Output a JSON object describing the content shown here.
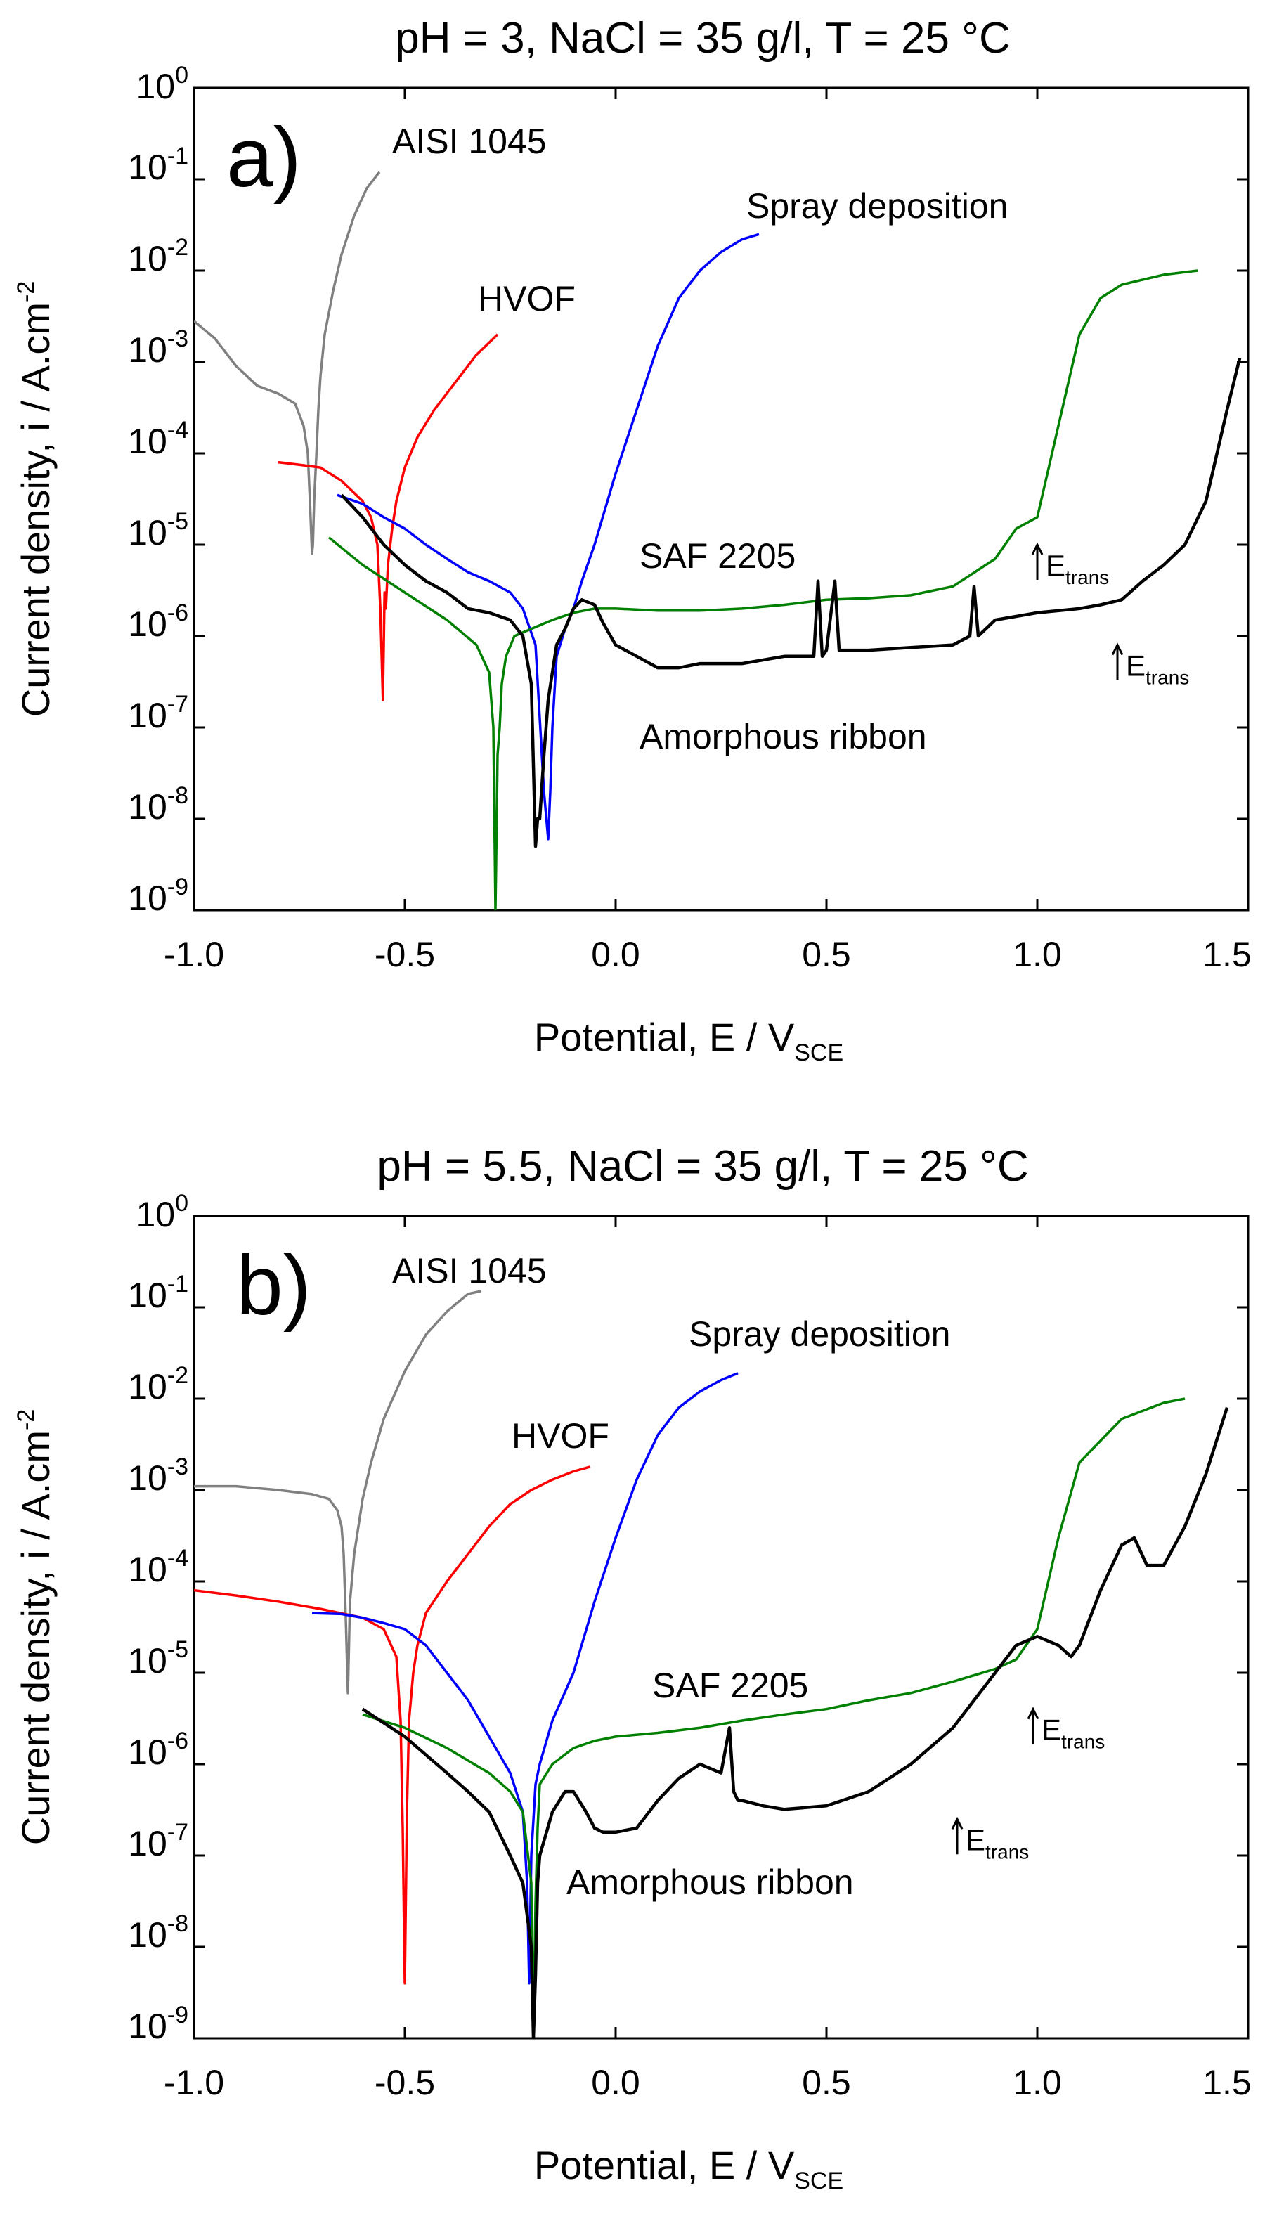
{
  "figure": {
    "panels": [
      {
        "panel_label": "a)",
        "title": "pH = 3, NaCl = 35 g/l, T = 25 °C",
        "annotations": [
          "AISI 1045",
          "HVOF",
          "Spray deposition",
          "SAF 2205",
          "Amorphous ribbon"
        ],
        "markers": [
          {
            "label": "E",
            "sub": "trans",
            "x": 1.0,
            "y": 1e-05
          },
          {
            "label": "E",
            "sub": "trans",
            "x": 1.19,
            "y": 8e-07
          }
        ]
      },
      {
        "panel_label": "b)",
        "title": "pH = 5.5, NaCl = 35 g/l, T = 25 °C",
        "annotations": [
          "AISI 1045",
          "HVOF",
          "Spray deposition",
          "SAF 2205",
          "Amorphous ribbon"
        ],
        "markers": [
          {
            "label": "E",
            "sub": "trans",
            "x": 0.99,
            "y": 4e-06
          },
          {
            "label": "E",
            "sub": "trans",
            "x": 0.81,
            "y": 2.5e-07
          }
        ]
      }
    ],
    "xlabel": {
      "main": "Potential, E / V",
      "sub": "SCE"
    },
    "ylabel": {
      "main": "Current density, i / A.cm",
      "sup": "-2"
    },
    "x_ticks": [
      "-1.0",
      "-0.5",
      "0.0",
      "0.5",
      "1.0",
      "1.5"
    ],
    "y_tick_base": "10",
    "y_tick_exponents": [
      "-9",
      "-8",
      "-7",
      "-6",
      "-5",
      "-4",
      "-3",
      "-2",
      "-1",
      "0"
    ]
  },
  "chart_data": [
    {
      "type": "line",
      "title": "pH = 3, NaCl = 35 g/l, T = 25 °C",
      "xlabel": "Potential, E / VSCE",
      "ylabel": "Current density, i / A.cm-2",
      "xlim": [
        -1.0,
        1.5
      ],
      "ylim": [
        1e-09,
        1
      ],
      "yscale": "log",
      "series": [
        {
          "name": "AISI 1045",
          "color": "#808080",
          "x": [
            -1.0,
            -0.95,
            -0.9,
            -0.85,
            -0.8,
            -0.76,
            -0.74,
            -0.73,
            -0.725,
            -0.72,
            -0.718,
            -0.715,
            -0.71,
            -0.705,
            -0.7,
            -0.69,
            -0.67,
            -0.65,
            -0.62,
            -0.59,
            -0.56
          ],
          "y": [
            0.0028,
            0.0018,
            0.0009,
            0.00055,
            0.00045,
            0.00035,
            0.0002,
            0.0001,
            3e-05,
            8e-06,
            1e-05,
            3e-05,
            9e-05,
            0.0003,
            0.0007,
            0.002,
            0.006,
            0.015,
            0.04,
            0.08,
            0.12
          ]
        },
        {
          "name": "HVOF",
          "color": "#ff0000",
          "x": [
            -0.8,
            -0.75,
            -0.7,
            -0.65,
            -0.6,
            -0.58,
            -0.565,
            -0.558,
            -0.552,
            -0.548,
            -0.545,
            -0.54,
            -0.53,
            -0.52,
            -0.5,
            -0.47,
            -0.43,
            -0.38,
            -0.33,
            -0.28
          ],
          "y": [
            8e-05,
            7.5e-05,
            7e-05,
            5e-05,
            3e-05,
            2e-05,
            1e-05,
            2e-06,
            2e-07,
            3e-06,
            2e-06,
            6e-06,
            1.5e-05,
            3e-05,
            7e-05,
            0.00015,
            0.0003,
            0.0006,
            0.0012,
            0.002
          ]
        },
        {
          "name": "Spray deposition",
          "color": "#0000ff",
          "x": [
            -0.66,
            -0.6,
            -0.55,
            -0.5,
            -0.45,
            -0.4,
            -0.35,
            -0.3,
            -0.25,
            -0.22,
            -0.19,
            -0.17,
            -0.16,
            -0.155,
            -0.15,
            -0.14,
            -0.12,
            -0.1,
            -0.08,
            -0.05,
            0.0,
            0.05,
            0.1,
            0.15,
            0.2,
            0.25,
            0.3,
            0.34
          ],
          "y": [
            3.5e-05,
            2.8e-05,
            2e-05,
            1.5e-05,
            1e-05,
            7e-06,
            5e-06,
            4e-06,
            3e-06,
            2e-06,
            8e-07,
            2e-08,
            6e-09,
            2e-08,
            1e-07,
            6e-07,
            1.2e-06,
            2e-06,
            4e-06,
            1e-05,
            6e-05,
            0.0003,
            0.0015,
            0.005,
            0.01,
            0.016,
            0.022,
            0.025
          ]
        },
        {
          "name": "SAF 2205",
          "color": "#008000",
          "x": [
            -0.68,
            -0.6,
            -0.5,
            -0.4,
            -0.33,
            -0.3,
            -0.29,
            -0.285,
            -0.28,
            -0.275,
            -0.27,
            -0.26,
            -0.24,
            -0.2,
            -0.15,
            -0.1,
            -0.05,
            0.0,
            0.1,
            0.2,
            0.3,
            0.4,
            0.5,
            0.6,
            0.7,
            0.8,
            0.9,
            0.95,
            1.0,
            1.05,
            1.1,
            1.15,
            1.2,
            1.3,
            1.38
          ],
          "y": [
            1.2e-05,
            6e-06,
            3e-06,
            1.5e-06,
            8e-07,
            4e-07,
            1e-07,
            1e-09,
            5e-08,
            1e-07,
            3e-07,
            6e-07,
            1e-06,
            1.2e-06,
            1.5e-06,
            1.8e-06,
            2e-06,
            2e-06,
            1.9e-06,
            1.9e-06,
            2e-06,
            2.2e-06,
            2.5e-06,
            2.6e-06,
            2.8e-06,
            3.5e-06,
            7e-06,
            1.5e-05,
            2e-05,
            0.0002,
            0.002,
            0.005,
            0.007,
            0.009,
            0.01
          ]
        },
        {
          "name": "Amorphous ribbon",
          "color": "#000000",
          "x": [
            -0.65,
            -0.6,
            -0.55,
            -0.5,
            -0.45,
            -0.4,
            -0.35,
            -0.3,
            -0.25,
            -0.22,
            -0.2,
            -0.19,
            -0.185,
            -0.18,
            -0.17,
            -0.16,
            -0.14,
            -0.12,
            -0.1,
            -0.08,
            -0.05,
            -0.03,
            0.0,
            0.05,
            0.1,
            0.15,
            0.2,
            0.3,
            0.4,
            0.47,
            0.48,
            0.49,
            0.5,
            0.52,
            0.53,
            0.54,
            0.6,
            0.7,
            0.8,
            0.84,
            0.85,
            0.86,
            0.9,
            1.0,
            1.1,
            1.15,
            1.2,
            1.25,
            1.3,
            1.35,
            1.4,
            1.45,
            1.48
          ],
          "y": [
            3.5e-05,
            2e-05,
            1e-05,
            6e-06,
            4e-06,
            3e-06,
            2e-06,
            1.8e-06,
            1.5e-06,
            1e-06,
            3e-07,
            5e-09,
            1e-08,
            1e-08,
            5e-08,
            2e-07,
            8e-07,
            1.2e-06,
            2e-06,
            2.5e-06,
            2.2e-06,
            1.4e-06,
            8e-07,
            6e-07,
            4.5e-07,
            4.5e-07,
            5e-07,
            5e-07,
            6e-07,
            6e-07,
            4e-06,
            6e-07,
            7e-07,
            4e-06,
            7e-07,
            7e-07,
            7e-07,
            7.5e-07,
            8e-07,
            1e-06,
            3.5e-06,
            1e-06,
            1.5e-06,
            1.8e-06,
            2e-06,
            2.2e-06,
            2.5e-06,
            4e-06,
            6e-06,
            1e-05,
            3e-05,
            0.0003,
            0.0011
          ]
        }
      ]
    },
    {
      "type": "line",
      "title": "pH = 5.5, NaCl = 35 g/l, T = 25 °C",
      "xlabel": "Potential, E / VSCE",
      "ylabel": "Current density, i / A.cm-2",
      "xlim": [
        -1.0,
        1.5
      ],
      "ylim": [
        1e-09,
        1
      ],
      "yscale": "log",
      "series": [
        {
          "name": "AISI 1045",
          "color": "#808080",
          "x": [
            -1.0,
            -0.9,
            -0.8,
            -0.72,
            -0.68,
            -0.66,
            -0.65,
            -0.645,
            -0.64,
            -0.635,
            -0.63,
            -0.62,
            -0.6,
            -0.58,
            -0.55,
            -0.5,
            -0.45,
            -0.4,
            -0.35,
            -0.32
          ],
          "y": [
            0.0011,
            0.0011,
            0.001,
            0.0009,
            0.0008,
            0.0006,
            0.0004,
            0.0002,
            4e-05,
            6e-06,
            6e-05,
            0.0002,
            0.0008,
            0.002,
            0.006,
            0.02,
            0.05,
            0.09,
            0.14,
            0.15
          ]
        },
        {
          "name": "HVOF",
          "color": "#ff0000",
          "x": [
            -1.0,
            -0.9,
            -0.8,
            -0.7,
            -0.6,
            -0.55,
            -0.52,
            -0.51,
            -0.505,
            -0.5,
            -0.495,
            -0.49,
            -0.48,
            -0.47,
            -0.45,
            -0.4,
            -0.35,
            -0.3,
            -0.25,
            -0.2,
            -0.15,
            -0.1,
            -0.06
          ],
          "y": [
            8e-05,
            7e-05,
            6e-05,
            5e-05,
            4e-05,
            3e-05,
            1.5e-05,
            3e-06,
            2e-07,
            4e-09,
            3e-07,
            3e-06,
            1e-05,
            2e-05,
            4.5e-05,
            0.0001,
            0.0002,
            0.0004,
            0.0007,
            0.001,
            0.0013,
            0.0016,
            0.0018
          ]
        },
        {
          "name": "Spray deposition",
          "color": "#0000ff",
          "x": [
            -0.72,
            -0.65,
            -0.6,
            -0.55,
            -0.5,
            -0.45,
            -0.4,
            -0.35,
            -0.3,
            -0.25,
            -0.22,
            -0.21,
            -0.205,
            -0.2,
            -0.19,
            -0.18,
            -0.15,
            -0.1,
            -0.05,
            0.0,
            0.05,
            0.1,
            0.15,
            0.2,
            0.25,
            0.29
          ],
          "y": [
            4.5e-05,
            4.4e-05,
            4e-05,
            3.5e-05,
            3e-05,
            2e-05,
            1e-05,
            5e-06,
            2e-06,
            8e-07,
            3e-07,
            5e-08,
            4e-09,
            1e-07,
            6e-07,
            1e-06,
            3e-06,
            1e-05,
            6e-05,
            0.0003,
            0.0013,
            0.004,
            0.008,
            0.012,
            0.016,
            0.019
          ]
        },
        {
          "name": "SAF 2205",
          "color": "#008000",
          "x": [
            -0.6,
            -0.5,
            -0.4,
            -0.3,
            -0.25,
            -0.22,
            -0.2,
            -0.195,
            -0.19,
            -0.185,
            -0.18,
            -0.15,
            -0.1,
            -0.05,
            0.0,
            0.1,
            0.2,
            0.3,
            0.4,
            0.5,
            0.6,
            0.7,
            0.8,
            0.9,
            0.95,
            1.0,
            1.05,
            1.1,
            1.2,
            1.3,
            1.35
          ],
          "y": [
            3.5e-06,
            2.5e-06,
            1.5e-06,
            8e-07,
            5e-07,
            3e-07,
            5e-08,
            1e-09,
            3e-08,
            2e-07,
            6e-07,
            1e-06,
            1.5e-06,
            1.8e-06,
            2e-06,
            2.2e-06,
            2.5e-06,
            3e-06,
            3.5e-06,
            4e-06,
            5e-06,
            6e-06,
            8e-06,
            1.1e-05,
            1.4e-05,
            3e-05,
            0.0003,
            0.002,
            0.006,
            0.009,
            0.01
          ]
        },
        {
          "name": "Amorphous ribbon",
          "color": "#000000",
          "x": [
            -0.6,
            -0.5,
            -0.4,
            -0.35,
            -0.3,
            -0.25,
            -0.22,
            -0.2,
            -0.195,
            -0.19,
            -0.185,
            -0.18,
            -0.15,
            -0.12,
            -0.1,
            -0.07,
            -0.05,
            -0.03,
            0.0,
            0.05,
            0.1,
            0.15,
            0.2,
            0.25,
            0.27,
            0.28,
            0.29,
            0.3,
            0.35,
            0.4,
            0.5,
            0.6,
            0.7,
            0.8,
            0.85,
            0.9,
            0.95,
            1.0,
            1.05,
            1.08,
            1.1,
            1.15,
            1.2,
            1.23,
            1.26,
            1.3,
            1.35,
            1.4,
            1.45
          ],
          "y": [
            4e-06,
            2e-06,
            8e-07,
            5e-07,
            3e-07,
            1e-07,
            5e-08,
            1e-08,
            1e-09,
            5e-09,
            5e-08,
            1e-07,
            3e-07,
            5e-07,
            5e-07,
            3e-07,
            2e-07,
            1.8e-07,
            1.8e-07,
            2e-07,
            4e-07,
            7e-07,
            1e-06,
            8e-07,
            2.5e-06,
            5e-07,
            4e-07,
            4e-07,
            3.5e-07,
            3.2e-07,
            3.5e-07,
            5e-07,
            1e-06,
            2.5e-06,
            5e-06,
            1e-05,
            2e-05,
            2.5e-05,
            2e-05,
            1.5e-05,
            2e-05,
            8e-05,
            0.00025,
            0.0003,
            0.00015,
            0.00015,
            0.0004,
            0.0015,
            0.008
          ]
        }
      ]
    }
  ]
}
